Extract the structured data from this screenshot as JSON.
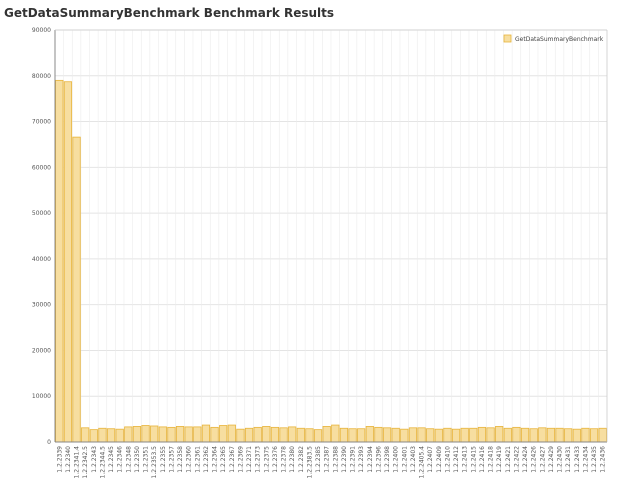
{
  "chart_data": {
    "type": "bar",
    "title": "GetDataSummaryBenchmark Benchmark Results",
    "xlabel": "",
    "ylabel": "",
    "ylim": [
      0,
      90000
    ],
    "yticks": [
      0,
      10000,
      20000,
      30000,
      40000,
      50000,
      60000,
      70000,
      80000,
      90000
    ],
    "grid": true,
    "legend_position": "top-right",
    "colors": {
      "bar_fill": "#f7dea0",
      "bar_stroke": "#e8b43a",
      "grid": "#e4e4e4",
      "axis": "#888888"
    },
    "categories": [
      "1.2.2339",
      "1.2.2340",
      "1.2.2341.4",
      "1.2.2342.5",
      "1.2.2343",
      "1.2.2344.5",
      "1.2.2345",
      "1.2.2346",
      "1.2.2348",
      "1.2.2350",
      "1.2.2351",
      "1.2.2353.5",
      "1.2.2355",
      "1.2.2357",
      "1.2.2358",
      "1.2.2360",
      "1.2.2361",
      "1.2.2362",
      "1.2.2364",
      "1.2.2365",
      "1.2.2367",
      "1.2.2369",
      "1.2.2371",
      "1.2.2373",
      "1.2.2375",
      "1.2.2376",
      "1.2.2378",
      "1.2.2380",
      "1.2.2382",
      "1.2.2383.5",
      "1.2.2385",
      "1.2.2387",
      "1.2.2388",
      "1.2.2390",
      "1.2.2391",
      "1.2.2393",
      "1.2.2394",
      "1.2.2396",
      "1.2.2398",
      "1.2.2400",
      "1.2.2401",
      "1.2.2403",
      "1.2.2405.4",
      "1.2.2407",
      "1.2.2409",
      "1.2.2410",
      "1.2.2412",
      "1.2.2413",
      "1.2.2415",
      "1.2.2416",
      "1.2.2418",
      "1.2.2419",
      "1.2.2421",
      "1.2.2422",
      "1.2.2424",
      "1.2.2426",
      "1.2.2427",
      "1.2.2429",
      "1.2.2430",
      "1.2.2431",
      "1.2.2433",
      "1.2.2434",
      "1.2.2435",
      "1.2.2436"
    ],
    "series": [
      {
        "name": "GetDataSummaryBenchmark",
        "values": [
          79000,
          78700,
          66600,
          3100,
          2700,
          3000,
          2900,
          2800,
          3300,
          3400,
          3600,
          3500,
          3300,
          3200,
          3400,
          3300,
          3300,
          3700,
          3200,
          3600,
          3700,
          2800,
          3000,
          3200,
          3400,
          3200,
          3100,
          3300,
          3000,
          2900,
          2700,
          3400,
          3700,
          3000,
          2900,
          2900,
          3400,
          3200,
          3100,
          3000,
          2800,
          3100,
          3100,
          2900,
          2800,
          3000,
          2800,
          3000,
          3000,
          3200,
          3100,
          3400,
          3000,
          3200,
          3000,
          2900,
          3100,
          3000,
          3000,
          2900,
          2800,
          3000,
          2900,
          3000
        ]
      }
    ]
  }
}
